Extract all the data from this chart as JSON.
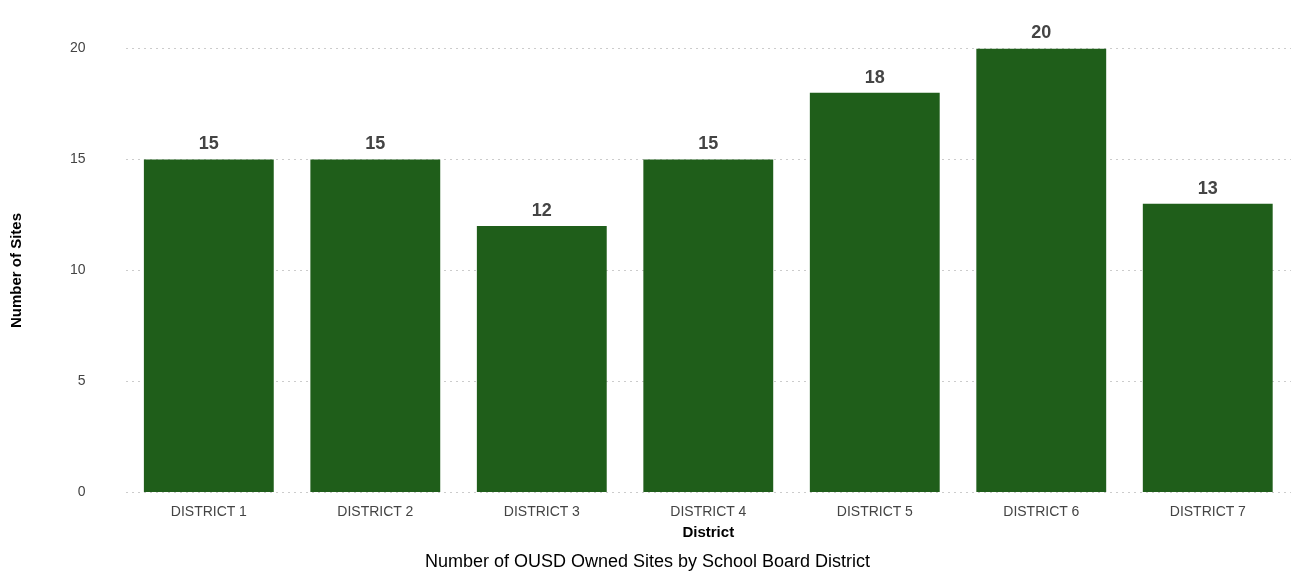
{
  "chart_data": {
    "type": "bar",
    "title": "Number of OUSD Owned Sites by School Board District",
    "xlabel": "District",
    "ylabel": "Number of Sites",
    "categories": [
      "DISTRICT 1",
      "DISTRICT 2",
      "DISTRICT 3",
      "DISTRICT 4",
      "DISTRICT 5",
      "DISTRICT 6",
      "DISTRICT 7"
    ],
    "values": [
      15,
      15,
      12,
      15,
      18,
      20,
      13
    ],
    "color": "#1f5e1a",
    "ylim": [
      0,
      20
    ],
    "yticks": [
      0,
      5,
      10,
      15,
      20
    ],
    "grid": "y",
    "data_labels": true,
    "legend": false
  }
}
